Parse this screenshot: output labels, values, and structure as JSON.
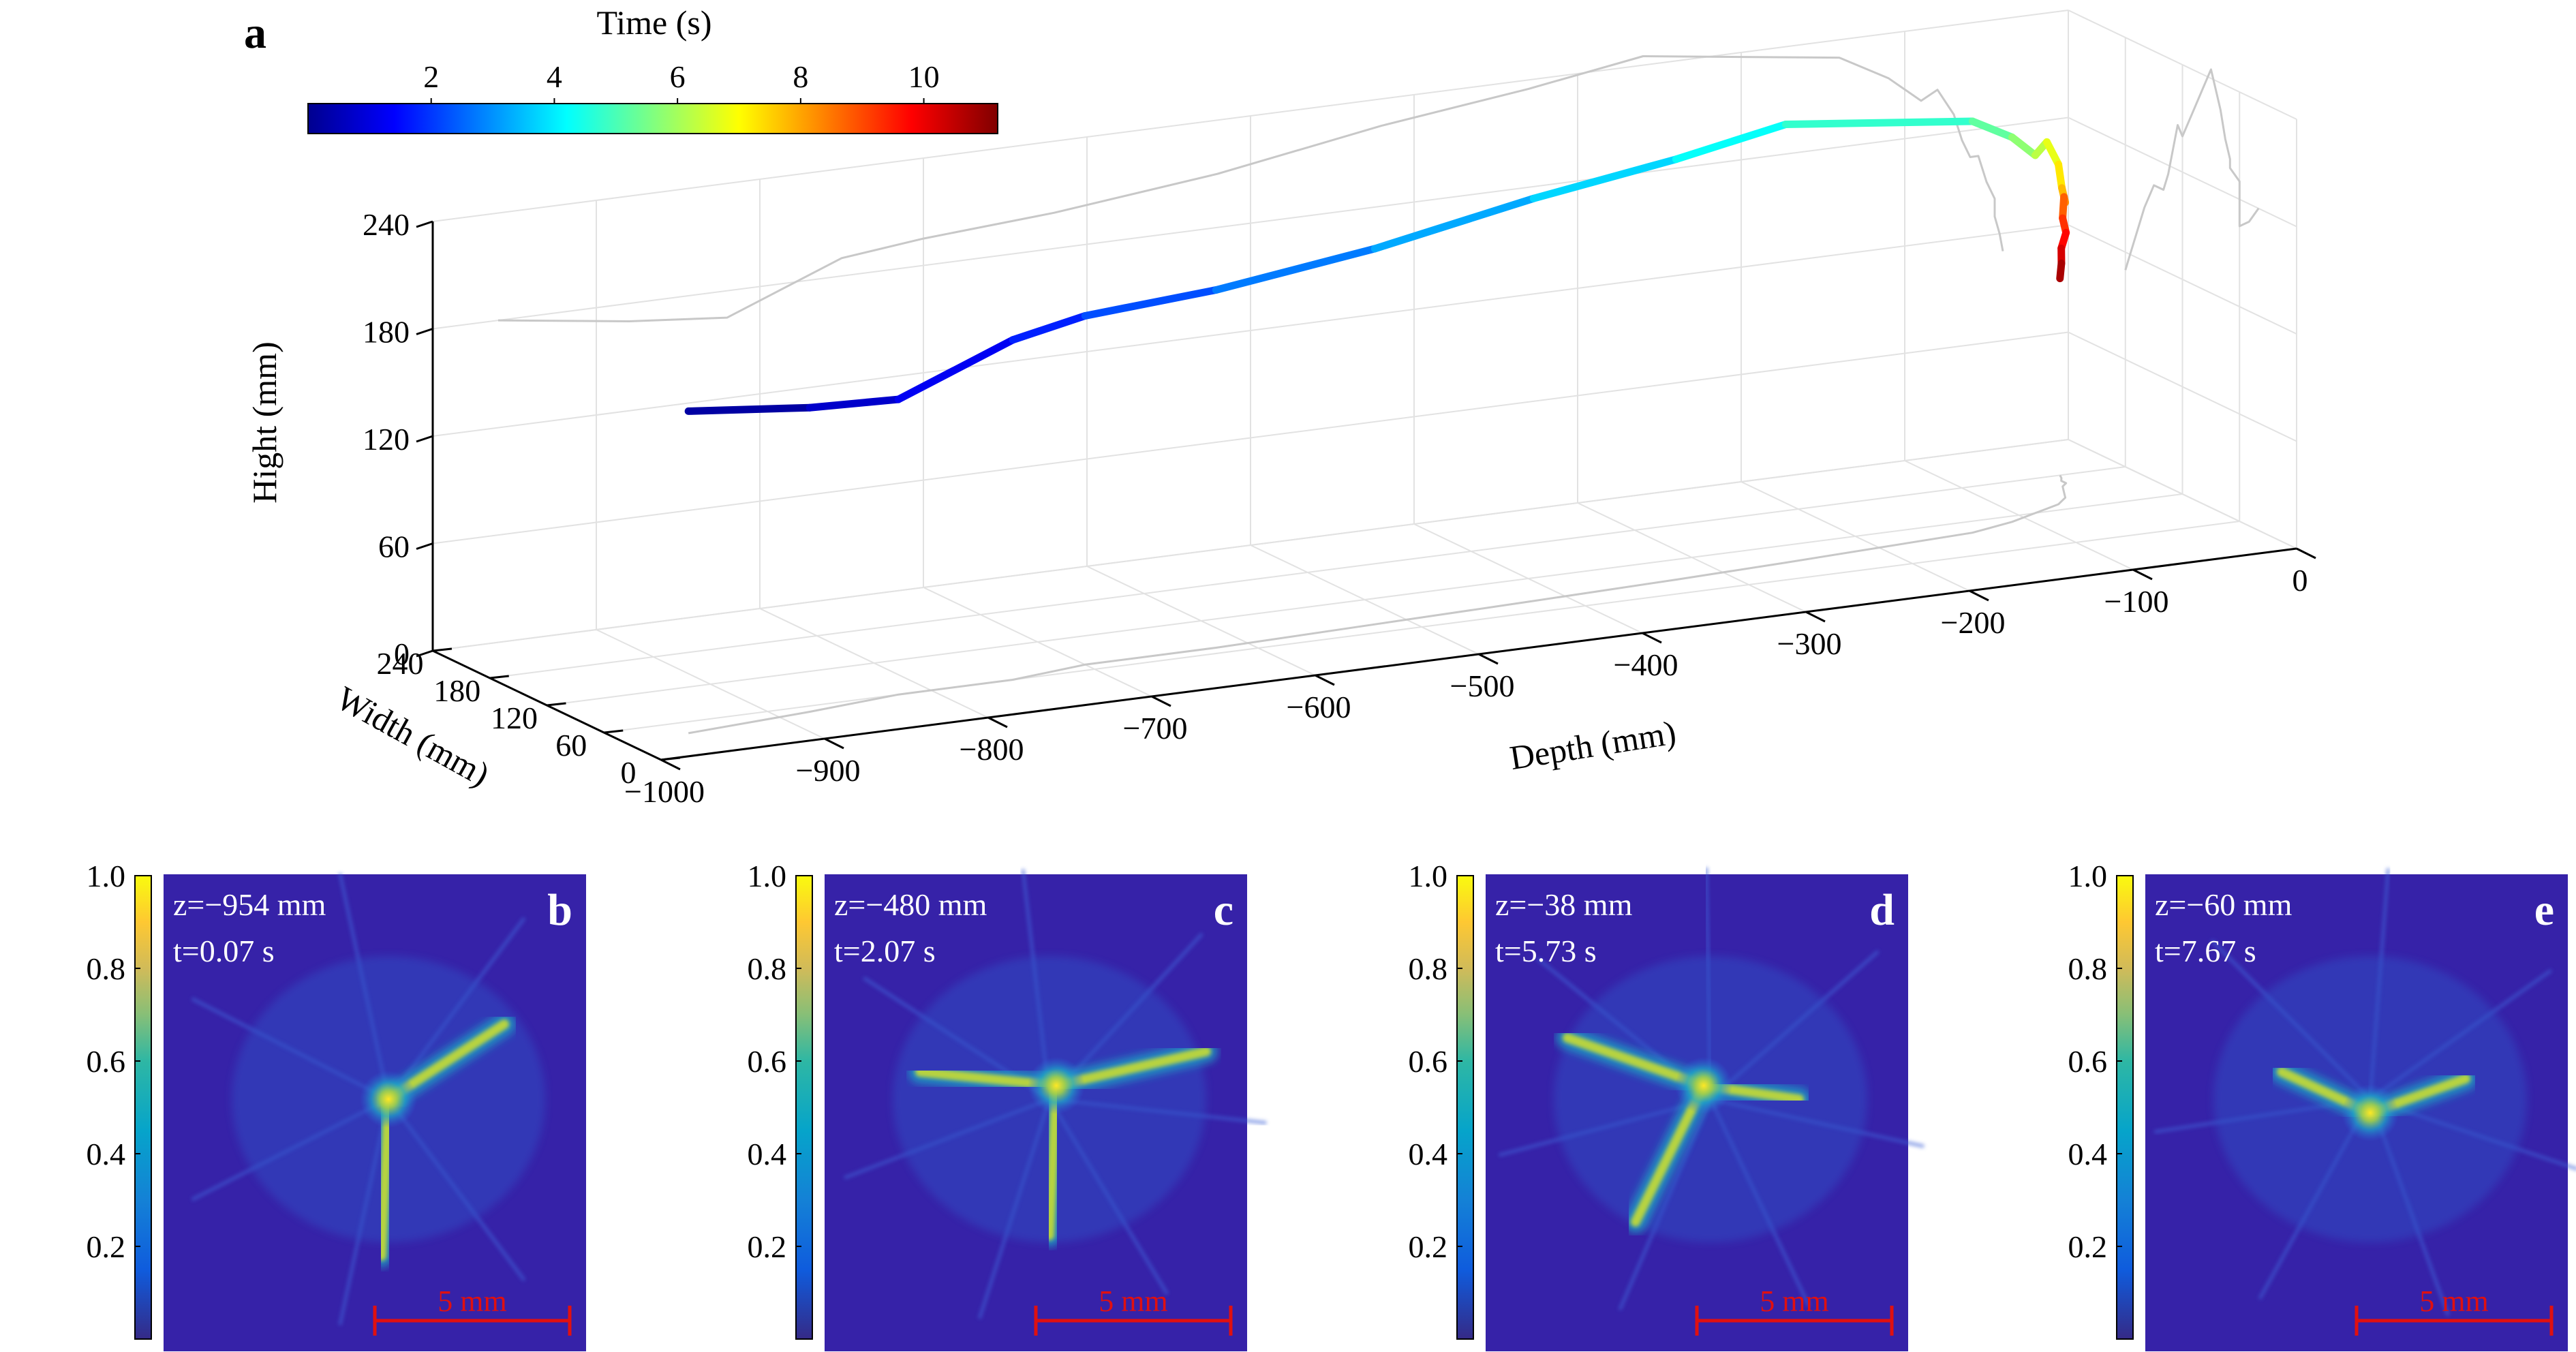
{
  "chart_data": [
    {
      "panel": "a",
      "type": "line3d",
      "colorbar": {
        "label": "Time (s)",
        "ticks": [
          "2",
          "4",
          "6",
          "8",
          "10"
        ],
        "range": [
          0,
          11.2
        ],
        "colormap": "jet"
      },
      "axes": {
        "zlabel": "Hight (mm)",
        "zticks": [
          "0",
          "60",
          "120",
          "180",
          "240"
        ],
        "xlabel": "Width (mm)",
        "xticks": [
          "0",
          "60",
          "120",
          "180",
          "240"
        ],
        "ylabel": "Depth (mm)",
        "yticks": [
          "−1000",
          "−900",
          "−800",
          "−700",
          "−600",
          "−500",
          "−400",
          "−300",
          "−200",
          "−100",
          "0"
        ],
        "grid": true
      },
      "trajectory": {
        "units": {
          "time": "s",
          "depth": "mm",
          "width": "mm",
          "height": "mm"
        },
        "t": [
          0.0,
          0.5,
          1.0,
          1.5,
          2.0,
          2.5,
          3.0,
          3.5,
          4.0,
          4.5,
          5.0,
          5.5,
          6.0,
          6.5,
          7.0,
          7.5,
          8.0,
          8.5,
          9.0,
          9.5,
          10.0,
          10.5,
          11.0
        ],
        "depth": [
          -960,
          -880,
          -820,
          -750,
          -700,
          -620,
          -520,
          -420,
          -330,
          -260,
          -140,
          -110,
          -90,
          -80,
          -70,
          -65,
          -60,
          -55,
          -50,
          -45,
          -45,
          -42,
          -40
        ],
        "width": [
          40,
          50,
          60,
          60,
          70,
          70,
          75,
          80,
          85,
          90,
          100,
          110,
          120,
          125,
          130,
          135,
          140,
          150,
          160,
          165,
          170,
          175,
          180
        ],
        "height": [
          180,
          170,
          165,
          190,
          195,
          200,
          210,
          225,
          235,
          245,
          230,
          215,
          200,
          205,
          190,
          175,
          165,
          165,
          150,
          140,
          130,
          120,
          110
        ]
      }
    },
    {
      "panel": "b",
      "type": "heatmap",
      "colorbar_ticks": [
        "1.0",
        "0.8",
        "0.6",
        "0.4",
        "0.2"
      ],
      "annotation": [
        "z=−954 mm",
        "t=0.07 s"
      ],
      "scale_bar": "5 mm"
    },
    {
      "panel": "c",
      "type": "heatmap",
      "colorbar_ticks": [
        "1.0",
        "0.8",
        "0.6",
        "0.4",
        "0.2"
      ],
      "annotation": [
        "z=−480 mm",
        "t=2.07 s"
      ],
      "scale_bar": "5 mm"
    },
    {
      "panel": "d",
      "type": "heatmap",
      "colorbar_ticks": [
        "1.0",
        "0.8",
        "0.6",
        "0.4",
        "0.2"
      ],
      "annotation": [
        "z=−38 mm",
        "t=5.73 s"
      ],
      "scale_bar": "5 mm"
    },
    {
      "panel": "e",
      "type": "heatmap",
      "colorbar_ticks": [
        "1.0",
        "0.8",
        "0.6",
        "0.4",
        "0.2"
      ],
      "annotation": [
        "z=−60 mm",
        "t=7.67 s"
      ],
      "scale_bar": "5 mm"
    }
  ],
  "colors": {
    "shadow": "#c8c8c8",
    "grid": "#e2e2e2",
    "image_background": "#3622a8",
    "scale_bar": "#e01010",
    "parula": [
      "#352a87",
      "#0f5cdd",
      "#1481d6",
      "#06a4ca",
      "#2eb7a4",
      "#87bf77",
      "#d1bb59",
      "#fec832",
      "#f9fb0e"
    ],
    "jet": [
      "#00008f",
      "#0000ff",
      "#0080ff",
      "#00ffff",
      "#80ff80",
      "#ffff00",
      "#ff8000",
      "#ff0000",
      "#800000"
    ]
  }
}
